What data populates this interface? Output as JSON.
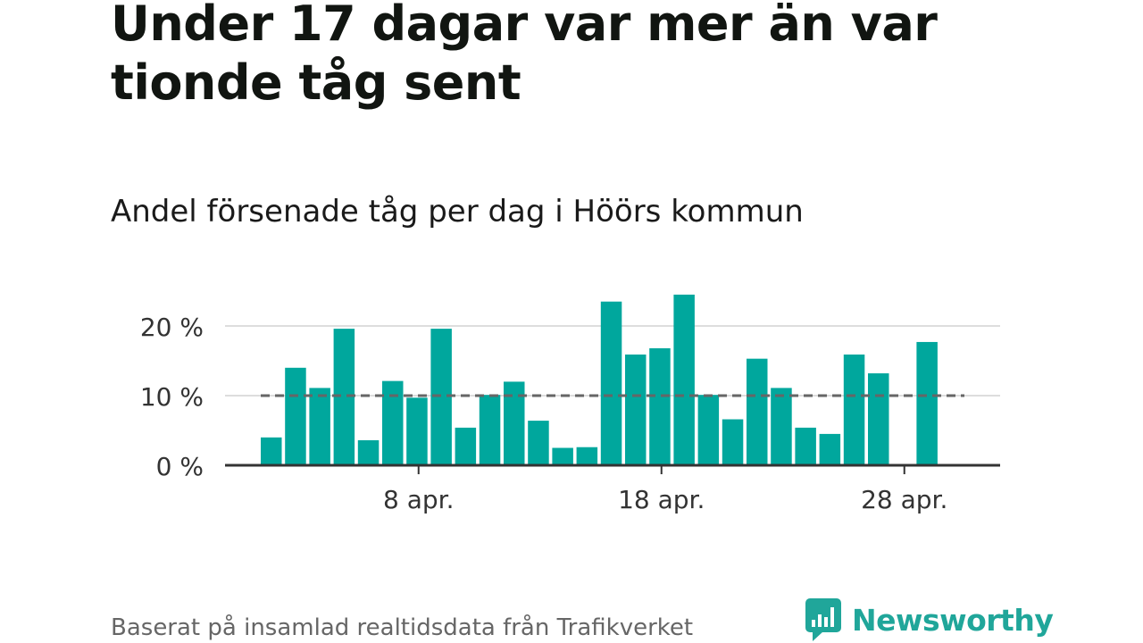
{
  "title": "Under 17 dagar var mer än var tionde tåg sent",
  "subtitle": "Andel försenade tåg per dag i Höörs kommun",
  "footer": "Baserat på insamlad realtidsdata från Trafikverket",
  "brand": "Newsworthy",
  "colors": {
    "bar": "#00a79d",
    "brand": "#20a69a",
    "reference_line": "#666666",
    "grid": "#dddddd"
  },
  "chart_data": {
    "type": "bar",
    "x": [
      "2 apr.",
      "3 apr.",
      "4 apr.",
      "5 apr.",
      "6 apr.",
      "7 apr.",
      "8 apr.",
      "9 apr.",
      "10 apr.",
      "11 apr.",
      "12 apr.",
      "13 apr.",
      "14 apr.",
      "15 apr.",
      "16 apr.",
      "17 apr.",
      "18 apr.",
      "19 apr.",
      "20 apr.",
      "21 apr.",
      "22 apr.",
      "23 apr.",
      "24 apr.",
      "25 apr.",
      "26 apr.",
      "27 apr.",
      "28 apr.",
      "29 apr."
    ],
    "values": [
      4.0,
      14.0,
      11.1,
      19.6,
      3.6,
      12.1,
      9.7,
      19.6,
      5.4,
      10.1,
      12.0,
      6.4,
      2.5,
      2.6,
      23.5,
      15.9,
      16.8,
      24.5,
      10.1,
      6.6,
      15.3,
      11.1,
      5.4,
      4.5,
      15.9,
      13.2,
      null,
      17.7
    ],
    "reference_line": 10,
    "x_ticks": [
      "8 apr.",
      "18 apr.",
      "28 apr."
    ],
    "y_ticks": [
      "0 %",
      "10 %",
      "20 %"
    ],
    "ylim": [
      0,
      25
    ],
    "grid": true
  }
}
